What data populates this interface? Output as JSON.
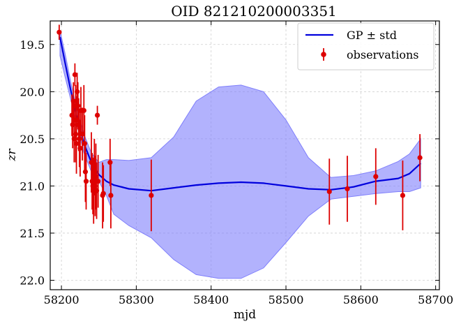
{
  "chart_data": {
    "type": "line",
    "title": "OID 821210200003351",
    "xlabel": "mjd",
    "ylabel": "zr",
    "xlim": [
      58185,
      58705
    ],
    "ylim": [
      22.1,
      19.25
    ],
    "y_inverted": true,
    "grid": true,
    "legend_position": "top-right",
    "x_ticks": [
      58200,
      58300,
      58400,
      58500,
      58600,
      58700
    ],
    "x_tick_labels": [
      "58200",
      "58300",
      "58400",
      "58500",
      "58600",
      "58700"
    ],
    "y_ticks": [
      19.5,
      20.0,
      20.5,
      21.0,
      21.5,
      22.0
    ],
    "y_tick_labels": [
      "19.5",
      "20.0",
      "20.5",
      "21.0",
      "21.5",
      "22.0"
    ],
    "colors": {
      "gp_line": "#0000dd",
      "gp_band": "#7f7ffb",
      "observations": "#dd0000",
      "grid": "#cfcfcf"
    },
    "series": [
      {
        "name": "GP ± std",
        "kind": "line_with_band",
        "x": [
          58198,
          58205,
          58212,
          58220,
          58230,
          58240,
          58250,
          58260,
          58270,
          58290,
          58320,
          58350,
          58380,
          58410,
          58440,
          58470,
          58500,
          58530,
          58560,
          58590,
          58620,
          58650,
          58665,
          58680
        ],
        "y": [
          19.42,
          19.7,
          19.97,
          20.25,
          20.55,
          20.75,
          20.88,
          20.95,
          20.99,
          21.03,
          21.05,
          21.02,
          20.99,
          20.97,
          20.96,
          20.97,
          21.0,
          21.03,
          21.04,
          21.01,
          20.95,
          20.92,
          20.87,
          20.76
        ],
        "y_upper": [
          19.35,
          19.6,
          19.88,
          20.17,
          20.45,
          20.65,
          20.75,
          20.72,
          20.72,
          20.73,
          20.7,
          20.48,
          20.1,
          19.95,
          19.93,
          20.0,
          20.3,
          20.7,
          20.91,
          20.89,
          20.84,
          20.74,
          20.66,
          20.5
        ],
        "y_lower": [
          19.62,
          19.85,
          20.07,
          20.33,
          20.65,
          20.85,
          20.95,
          21.1,
          21.3,
          21.42,
          21.55,
          21.78,
          21.94,
          21.98,
          21.98,
          21.87,
          21.6,
          21.32,
          21.14,
          21.11,
          21.08,
          21.06,
          21.06,
          21.02
        ]
      },
      {
        "name": "observations",
        "kind": "errorbar",
        "x": [
          58197,
          58214,
          58215,
          58216,
          58217,
          58217,
          58218,
          58219,
          58219,
          58220,
          58220,
          58221,
          58222,
          58223,
          58224,
          58225,
          58226,
          58228,
          58230,
          58231,
          58232,
          58233,
          58240,
          58241,
          58242,
          58243,
          58244,
          58245,
          58246,
          58247,
          58248,
          58249,
          58255,
          58256,
          58265,
          58266,
          58320,
          58558,
          58582,
          58620,
          58656,
          58679
        ],
        "y": [
          19.37,
          20.25,
          20.35,
          20.1,
          20.5,
          20.3,
          19.82,
          20.45,
          20.15,
          20.55,
          20.3,
          20.0,
          20.15,
          20.35,
          20.5,
          20.6,
          20.2,
          20.45,
          20.2,
          20.55,
          20.85,
          20.95,
          20.75,
          20.95,
          21.0,
          21.05,
          20.8,
          21.0,
          20.9,
          21.05,
          20.25,
          20.95,
          21.1,
          21.08,
          20.75,
          21.1,
          21.1,
          21.06,
          21.03,
          20.9,
          21.1,
          20.7
        ],
        "yerr": [
          0.08,
          0.22,
          0.25,
          0.2,
          0.25,
          0.22,
          0.12,
          0.3,
          0.22,
          0.32,
          0.25,
          0.2,
          0.25,
          0.28,
          0.3,
          0.3,
          0.25,
          0.28,
          0.27,
          0.3,
          0.32,
          0.3,
          0.32,
          0.3,
          0.3,
          0.35,
          0.3,
          0.32,
          0.35,
          0.3,
          0.1,
          0.28,
          0.35,
          0.3,
          0.25,
          0.35,
          0.38,
          0.35,
          0.35,
          0.3,
          0.37,
          0.25
        ]
      }
    ]
  }
}
